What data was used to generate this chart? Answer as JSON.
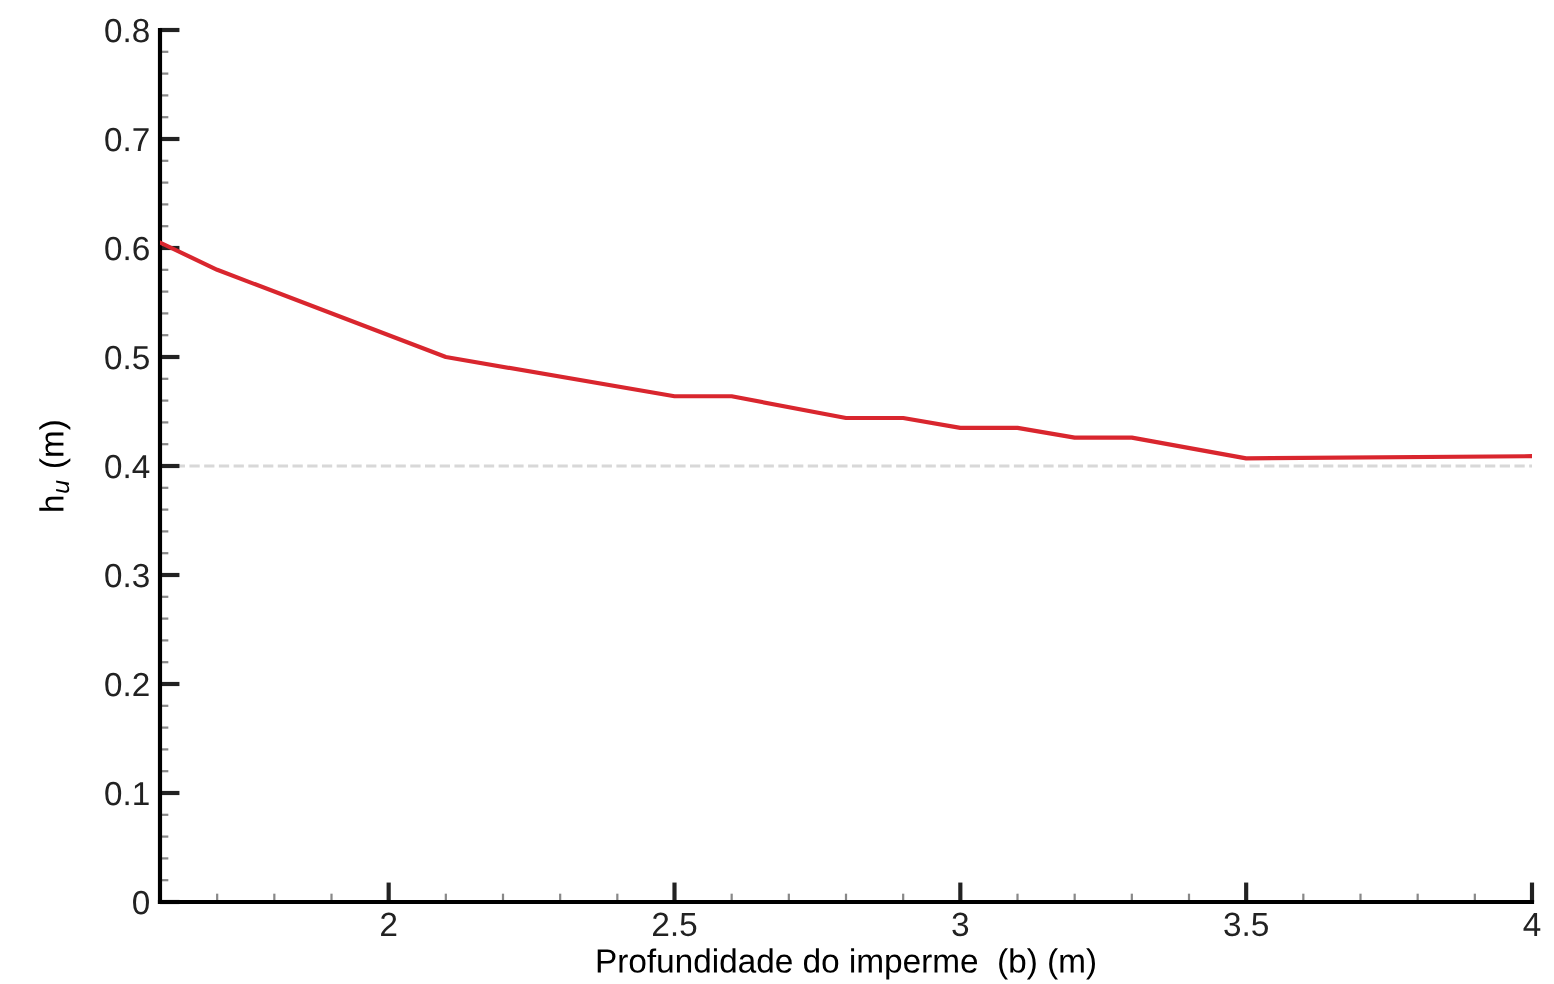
{
  "chart_data": {
    "type": "line",
    "xlabel": "Profundidade do imperme  (b) (m)",
    "ylabel": "h$_{u}$ (m)",
    "x": [
      1.6,
      1.7,
      2.1,
      2.5,
      2.6,
      2.8,
      2.9,
      3.0,
      3.1,
      3.2,
      3.3,
      3.5,
      4.0
    ],
    "series": [
      {
        "color": "#d9262e",
        "values": [
          0.605,
          0.58,
          0.5,
          0.464,
          0.464,
          0.444,
          0.444,
          0.435,
          0.435,
          0.426,
          0.426,
          0.407,
          0.409
        ]
      }
    ],
    "xlim": [
      1.6,
      4
    ],
    "xticks": [
      2,
      2.5,
      3,
      3.5,
      4
    ],
    "ylim": [
      0,
      0.8
    ],
    "yticks": [
      0,
      0.1,
      0.2,
      0.3,
      0.4,
      0.5,
      0.6,
      0.7,
      0.8
    ],
    "ref_lines": [
      {
        "axis": "y",
        "value": 0.4,
        "color": "#d8d8d8",
        "line_style": "dashed"
      }
    ],
    "grid": false,
    "marker": "none",
    "line_style": "solid"
  }
}
